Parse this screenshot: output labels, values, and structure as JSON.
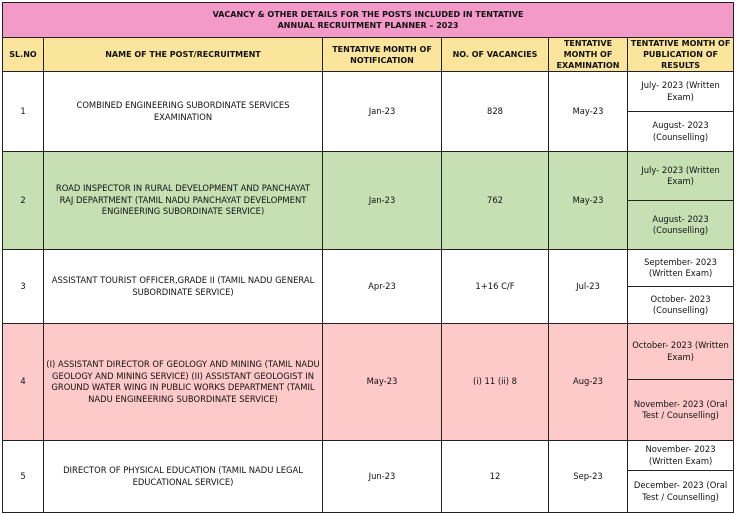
{
  "title_lines": [
    "VACANCY & OTHER DETAILS FOR THE POSTS INCLUDED IN TENTATIVE",
    "ANNUAL RECRUITMENT PLANNER – 2023"
  ],
  "headers": [
    "SL.NO",
    "NAME OF THE POST/RECRUITMENT",
    "TENTATIVE MONTH OF NOTIFICATION",
    "NO. OF VACANCIES",
    "TENTATIVE MONTH OF EXAMINATION",
    "TENTATIVE MONTH OF PUBLICATION OF RESULTS"
  ],
  "row_colors": [
    "#ffffff",
    "#c6e0b4",
    "#ffffff",
    "#fdc9c9",
    "#ffffff"
  ],
  "rows": [
    {
      "sl": "1",
      "name": "COMBINED ENGINEERING SUBORDINATE SERVICES EXAMINATION",
      "notification": "Jan-23",
      "vacancies": "828",
      "exam": "May-23",
      "results": [
        "July- 2023 (Written Exam)",
        "August- 2023 (Counselling)"
      ]
    },
    {
      "sl": "2",
      "name": "ROAD INSPECTOR IN RURAL DEVELOPMENT AND PANCHAYAT RAJ DEPARTMENT (TAMIL NADU PANCHAYAT DEVELOPMENT ENGINEERING SUBORDINATE SERVICE)",
      "notification": "Jan-23",
      "vacancies": "762",
      "exam": "May-23",
      "results": [
        "July- 2023 (Written Exam)",
        "August- 2023 (Counselling)"
      ]
    },
    {
      "sl": "3",
      "name": "ASSISTANT TOURIST OFFICER,GRADE II (TAMIL NADU GENERAL SUBORDINATE SERVICE)",
      "notification": "Apr-23",
      "vacancies": "1+16 C/F",
      "exam": "Jul-23",
      "results": [
        "September- 2023 (Written Exam)",
        "October- 2023 (Counselling)"
      ]
    },
    {
      "sl": "4",
      "name": "(I) ASSISTANT DIRECTOR OF GEOLOGY AND MINING (TAMIL NADU GEOLOGY AND MINING SERVICE) (II) ASSISTANT GEOLOGIST IN GROUND WATER WING IN PUBLIC WORKS DEPARTMENT (TAMIL NADU ENGINEERING SUBORDINATE SERVICE)",
      "notification": "May-23",
      "vacancies": "(i) 11 (ii) 8",
      "exam": "Aug-23",
      "results": [
        "October- 2023 (Written Exam)",
        "November- 2023 (Oral Test / Counselling)"
      ]
    },
    {
      "sl": "5",
      "name": "DIRECTOR OF PHYSICAL EDUCATION (TAMIL NADU LEGAL EDUCATIONAL SERVICE)",
      "notification": "Jun-23",
      "vacancies": "12",
      "exam": "Sep-23",
      "results": [
        "November- 2023 (Written Exam)",
        "December- 2023 (Oral Test / Counselling)"
      ]
    }
  ]
}
